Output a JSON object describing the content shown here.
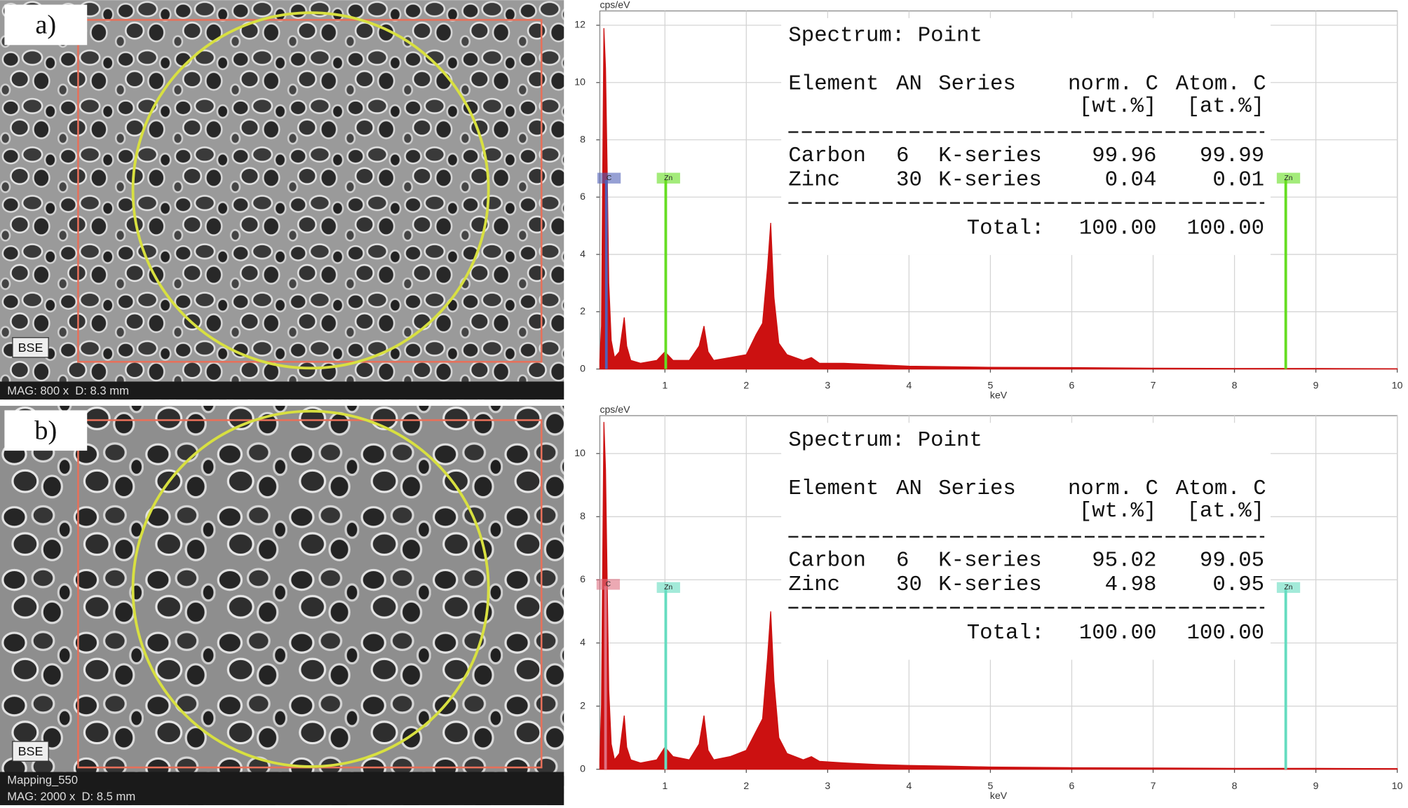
{
  "chart_data": [
    {
      "type": "area",
      "image": {
        "panel_label": "a)",
        "detector": "BSE",
        "info": [
          "MAG: 800 x  D: 8.3 mm"
        ]
      },
      "ylabel": "cps/eV",
      "xlabel": "keV",
      "xlim": [
        0.2,
        10
      ],
      "xticks": [
        1,
        2,
        3,
        4,
        5,
        6,
        7,
        8,
        9,
        10
      ],
      "ylim": [
        0,
        12.5
      ],
      "yticks": [
        0,
        2,
        4,
        6,
        8,
        10,
        12
      ],
      "grid": true,
      "x": [
        0.2,
        0.22,
        0.25,
        0.27,
        0.29,
        0.31,
        0.34,
        0.38,
        0.44,
        0.5,
        0.53,
        0.58,
        0.7,
        0.9,
        1.0,
        1.1,
        1.3,
        1.42,
        1.48,
        1.53,
        1.6,
        1.8,
        2.0,
        2.12,
        2.2,
        2.26,
        2.3,
        2.34,
        2.4,
        2.5,
        2.7,
        2.8,
        2.9,
        3.2,
        3.6,
        4.0,
        4.5,
        5.0,
        6.0,
        7.0,
        8.0,
        9.0,
        10.0
      ],
      "values": [
        0.3,
        1.5,
        11.9,
        10.5,
        7,
        3,
        1,
        0.4,
        0.6,
        1.8,
        0.8,
        0.3,
        0.2,
        0.3,
        0.6,
        0.3,
        0.3,
        0.8,
        1.5,
        0.6,
        0.3,
        0.4,
        0.5,
        1.2,
        1.6,
        3.5,
        5.1,
        2.5,
        0.9,
        0.5,
        0.3,
        0.4,
        0.2,
        0.2,
        0.15,
        0.1,
        0.08,
        0.06,
        0.05,
        0.03,
        0.02,
        0.02,
        0.01
      ],
      "color": "#cc1111",
      "peak_markers": [
        {
          "label": "C",
          "x": 0.28,
          "value": 6.6,
          "color": "#5060b8"
        },
        {
          "label": "Zn",
          "x": 1.01,
          "value": 6.6,
          "color": "#66dd22"
        },
        {
          "label": "Zn",
          "x": 8.63,
          "value": 6.6,
          "color": "#66dd22"
        }
      ],
      "table": {
        "title": "Spectrum: Point",
        "header": [
          "Element",
          "AN",
          "Series",
          "norm. C",
          "Atom. C"
        ],
        "units": [
          "[wt.%]",
          "[at.%]"
        ],
        "rows": [
          [
            "Carbon",
            "6",
            "K-series",
            "99.96",
            "99.99"
          ],
          [
            "Zinc",
            "30",
            "K-series",
            "0.04",
            "0.01"
          ]
        ],
        "total": [
          "Total:",
          "100.00",
          "100.00"
        ]
      }
    },
    {
      "type": "area",
      "image": {
        "panel_label": "b)",
        "detector": "BSE",
        "info": [
          "Mapping_550",
          "MAG: 2000 x  D: 8.5 mm"
        ]
      },
      "ylabel": "cps/eV",
      "xlabel": "keV",
      "xlim": [
        0.2,
        10
      ],
      "xticks": [
        1,
        2,
        3,
        4,
        5,
        6,
        7,
        8,
        9,
        10
      ],
      "ylim": [
        0,
        11.2
      ],
      "yticks": [
        0,
        2,
        4,
        6,
        8,
        10
      ],
      "grid": true,
      "x": [
        0.2,
        0.22,
        0.25,
        0.27,
        0.29,
        0.31,
        0.34,
        0.38,
        0.44,
        0.5,
        0.53,
        0.58,
        0.7,
        0.9,
        1.0,
        1.1,
        1.3,
        1.42,
        1.48,
        1.53,
        1.6,
        1.8,
        2.0,
        2.12,
        2.2,
        2.26,
        2.3,
        2.34,
        2.4,
        2.5,
        2.7,
        2.8,
        2.9,
        3.2,
        3.6,
        4.0,
        4.5,
        5.0,
        6.0,
        7.0,
        8.0,
        9.0,
        10.0
      ],
      "values": [
        0.3,
        2,
        11,
        9.5,
        6,
        2.5,
        0.8,
        0.3,
        0.5,
        1.7,
        0.7,
        0.3,
        0.2,
        0.3,
        0.7,
        0.4,
        0.3,
        0.8,
        1.7,
        0.6,
        0.3,
        0.4,
        0.6,
        1.2,
        1.6,
        3.5,
        5.0,
        2.8,
        1.0,
        0.5,
        0.3,
        0.4,
        0.25,
        0.2,
        0.15,
        0.12,
        0.1,
        0.07,
        0.05,
        0.04,
        0.03,
        0.03,
        0.02
      ],
      "color": "#cc1111",
      "peak_markers": [
        {
          "label": "C",
          "x": 0.27,
          "value": 5.8,
          "color": "#e07080"
        },
        {
          "label": "Zn",
          "x": 1.01,
          "value": 5.7,
          "color": "#66dcc0"
        },
        {
          "label": "Zn",
          "x": 8.63,
          "value": 5.7,
          "color": "#66dcc0"
        }
      ],
      "table": {
        "title": "Spectrum: Point",
        "header": [
          "Element",
          "AN",
          "Series",
          "norm. C",
          "Atom. C"
        ],
        "units": [
          "[wt.%]",
          "[at.%]"
        ],
        "rows": [
          [
            "Carbon",
            "6",
            "K-series",
            "95.02",
            "99.05"
          ],
          [
            "Zinc",
            "30",
            "K-series",
            "4.98",
            "0.95"
          ]
        ],
        "total": [
          "Total:",
          "100.00",
          "100.00"
        ]
      }
    }
  ]
}
